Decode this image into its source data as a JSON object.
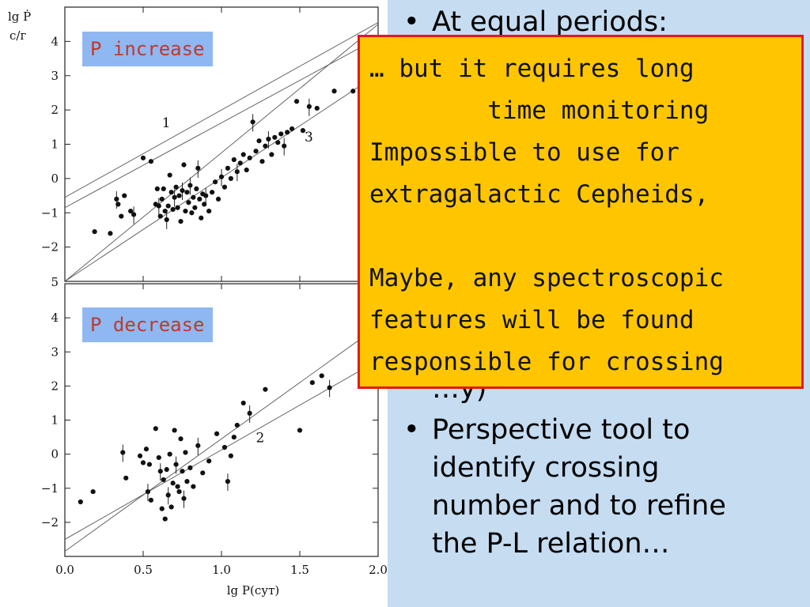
{
  "slide": {
    "background": "#c5dcf1",
    "bullets": [
      {
        "lines": [
          "At equal periods:"
        ],
        "partially_hidden": true
      },
      {
        "lines": [
          "…y)"
        ],
        "partially_hidden": true
      },
      {
        "lines": [
          "Perspective tool to",
          "identify crossing",
          "number and to refine",
          "the P-L relation…"
        ]
      }
    ],
    "bullet_glyph": "•"
  },
  "callout": {
    "background": "#ffc600",
    "border": "#e2191b",
    "lines": [
      "… but it requires long",
      "        time monitoring",
      "Impossible to use for",
      "extragalactic Cepheids,",
      "",
      "Maybe, any spectroscopic",
      "features will be found",
      "responsible for crossing"
    ]
  },
  "chart_data": [
    {
      "type": "scatter",
      "panel_tag": "P increase",
      "ylabel": "lg Ṗ",
      "ylabel_unit": "с/г",
      "xlim": [
        0.0,
        2.0
      ],
      "ylim": [
        -3.0,
        5.0
      ],
      "y_ticks": [
        4,
        3,
        2,
        1,
        0,
        -1,
        -2
      ],
      "y_tick_labels": [
        "4",
        "3",
        "2",
        "1",
        "0",
        "−1",
        "−2"
      ],
      "top_tick_label": "5",
      "lines": [
        {
          "label": "1",
          "points": [
            [
              0.0,
              -0.85
            ],
            [
              2.0,
              4.1
            ]
          ]
        },
        {
          "label": "",
          "points": [
            [
              0.0,
              -0.55
            ],
            [
              2.0,
              4.55
            ]
          ]
        },
        {
          "label": "",
          "points": [
            [
              0.0,
              -3.0
            ],
            [
              2.0,
              4.5
            ]
          ]
        },
        {
          "label": "3",
          "points": [
            [
              0.0,
              -3.0
            ],
            [
              2.0,
              3.05
            ]
          ]
        }
      ],
      "line_labels": [
        {
          "text": "1",
          "x": 0.62,
          "y": 1.5
        },
        {
          "text": "3",
          "x": 1.53,
          "y": 1.08
        }
      ],
      "points": [
        [
          0.19,
          -1.55
        ],
        [
          0.29,
          -1.6
        ],
        [
          0.33,
          -0.6
        ],
        [
          0.34,
          -0.75
        ],
        [
          0.36,
          -1.1
        ],
        [
          0.38,
          -0.5
        ],
        [
          0.42,
          -0.95
        ],
        [
          0.44,
          -1.05
        ],
        [
          0.5,
          0.6
        ],
        [
          0.55,
          0.5
        ],
        [
          0.58,
          -0.75
        ],
        [
          0.59,
          -0.3
        ],
        [
          0.6,
          -0.8
        ],
        [
          0.61,
          -1.1
        ],
        [
          0.62,
          -0.6
        ],
        [
          0.63,
          -0.3
        ],
        [
          0.64,
          -0.95
        ],
        [
          0.65,
          -1.2
        ],
        [
          0.66,
          -0.8
        ],
        [
          0.67,
          0.1
        ],
        [
          0.68,
          -0.4
        ],
        [
          0.69,
          -0.9
        ],
        [
          0.7,
          -0.55
        ],
        [
          0.71,
          -0.25
        ],
        [
          0.72,
          -0.85
        ],
        [
          0.73,
          -0.5
        ],
        [
          0.74,
          -1.25
        ],
        [
          0.75,
          -0.35
        ],
        [
          0.76,
          0.4
        ],
        [
          0.77,
          -0.95
        ],
        [
          0.78,
          -0.4
        ],
        [
          0.79,
          -0.7
        ],
        [
          0.8,
          -0.2
        ],
        [
          0.81,
          -1.0
        ],
        [
          0.82,
          -0.55
        ],
        [
          0.83,
          -0.85
        ],
        [
          0.84,
          -0.3
        ],
        [
          0.85,
          0.3
        ],
        [
          0.86,
          -0.6
        ],
        [
          0.87,
          -1.15
        ],
        [
          0.88,
          -0.45
        ],
        [
          0.89,
          -0.75
        ],
        [
          0.9,
          -0.5
        ],
        [
          0.92,
          -0.95
        ],
        [
          0.94,
          -0.4
        ],
        [
          0.96,
          -0.1
        ],
        [
          0.98,
          -0.6
        ],
        [
          1.0,
          0.05
        ],
        [
          1.02,
          -0.25
        ],
        [
          1.04,
          0.3
        ],
        [
          1.06,
          0.0
        ],
        [
          1.08,
          0.55
        ],
        [
          1.1,
          0.2
        ],
        [
          1.12,
          0.45
        ],
        [
          1.14,
          0.7
        ],
        [
          1.16,
          0.25
        ],
        [
          1.18,
          0.6
        ],
        [
          1.2,
          1.65
        ],
        [
          1.22,
          0.8
        ],
        [
          1.24,
          1.1
        ],
        [
          1.26,
          0.5
        ],
        [
          1.28,
          0.95
        ],
        [
          1.3,
          1.15
        ],
        [
          1.32,
          0.7
        ],
        [
          1.34,
          1.2
        ],
        [
          1.36,
          1.05
        ],
        [
          1.38,
          1.3
        ],
        [
          1.4,
          0.95
        ],
        [
          1.42,
          1.35
        ],
        [
          1.45,
          1.45
        ],
        [
          1.48,
          2.25
        ],
        [
          1.52,
          1.4
        ],
        [
          1.56,
          2.1
        ],
        [
          1.61,
          2.05
        ],
        [
          1.72,
          2.55
        ],
        [
          1.84,
          2.55
        ]
      ]
    },
    {
      "type": "scatter",
      "panel_tag": "P decrease",
      "ylabel": "",
      "xlabel": "lg P(сут)",
      "xlim": [
        0.0,
        2.0
      ],
      "ylim": [
        -3.0,
        5.0
      ],
      "x_ticks": [
        0.0,
        0.5,
        1.0,
        1.5,
        2.0
      ],
      "x_tick_labels": [
        "0.0",
        "0.5",
        "1.0",
        "1.5",
        "2.0"
      ],
      "y_ticks": [
        4,
        3,
        2,
        1,
        0,
        -1,
        -2
      ],
      "y_tick_labels": [
        "4",
        "3",
        "2",
        "1",
        "0",
        "−1",
        "−2"
      ],
      "lines": [
        {
          "label": "",
          "points": [
            [
              0.0,
              -2.85
            ],
            [
              2.0,
              3.75
            ]
          ]
        },
        {
          "label": "2",
          "points": [
            [
              0.0,
              -2.5
            ],
            [
              2.0,
              2.75
            ]
          ]
        }
      ],
      "line_labels": [
        {
          "text": "2",
          "x": 1.22,
          "y": 0.35
        }
      ],
      "points": [
        [
          0.1,
          -1.4
        ],
        [
          0.18,
          -1.1
        ],
        [
          0.37,
          0.05
        ],
        [
          0.39,
          -0.7
        ],
        [
          0.48,
          -0.05
        ],
        [
          0.5,
          -0.25
        ],
        [
          0.52,
          0.15
        ],
        [
          0.53,
          -1.1
        ],
        [
          0.54,
          -0.3
        ],
        [
          0.55,
          -1.35
        ],
        [
          0.58,
          0.75
        ],
        [
          0.6,
          -0.1
        ],
        [
          0.61,
          -0.5
        ],
        [
          0.62,
          -1.6
        ],
        [
          0.63,
          -0.75
        ],
        [
          0.64,
          -1.9
        ],
        [
          0.65,
          -0.45
        ],
        [
          0.66,
          -1.2
        ],
        [
          0.67,
          0.0
        ],
        [
          0.68,
          -1.55
        ],
        [
          0.69,
          -0.85
        ],
        [
          0.7,
          0.7
        ],
        [
          0.71,
          -0.3
        ],
        [
          0.72,
          -0.95
        ],
        [
          0.73,
          -1.1
        ],
        [
          0.74,
          0.45
        ],
        [
          0.75,
          -0.5
        ],
        [
          0.76,
          -1.3
        ],
        [
          0.77,
          0.05
        ],
        [
          0.78,
          -0.8
        ],
        [
          0.8,
          -0.4
        ],
        [
          0.82,
          -0.95
        ],
        [
          0.85,
          0.25
        ],
        [
          0.88,
          -0.55
        ],
        [
          0.92,
          -0.2
        ],
        [
          0.97,
          0.6
        ],
        [
          1.02,
          0.2
        ],
        [
          1.04,
          -0.8
        ],
        [
          1.06,
          -0.05
        ],
        [
          1.08,
          0.5
        ],
        [
          1.1,
          0.85
        ],
        [
          1.14,
          1.5
        ],
        [
          1.18,
          1.2
        ],
        [
          1.28,
          1.9
        ],
        [
          1.5,
          0.7
        ],
        [
          1.58,
          2.1
        ],
        [
          1.64,
          2.3
        ],
        [
          1.69,
          1.95
        ]
      ]
    }
  ],
  "shared_xlabel": "lg P(сут)"
}
